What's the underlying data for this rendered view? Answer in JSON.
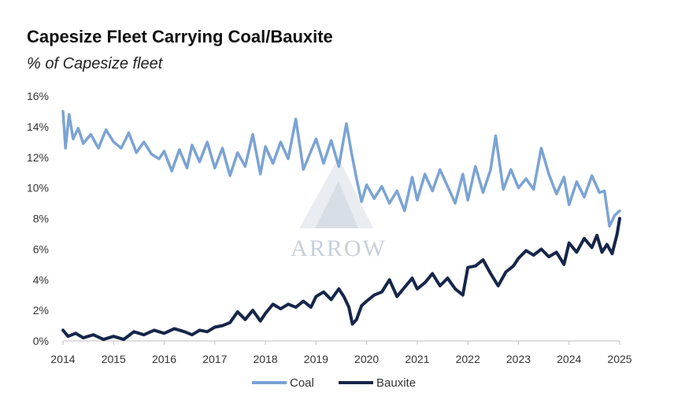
{
  "chart_data": {
    "type": "line",
    "title": "Capesize Fleet Carrying Coal/Bauxite",
    "subtitle": "% of Capesize fleet",
    "xlabel": "",
    "ylabel": "",
    "xlim": [
      2014,
      2025
    ],
    "ylim": [
      0,
      16
    ],
    "y_ticks": [
      0,
      2,
      4,
      6,
      8,
      10,
      12,
      14,
      16
    ],
    "y_tick_labels": [
      "0%",
      "2%",
      "4%",
      "6%",
      "8%",
      "10%",
      "12%",
      "14%",
      "16%"
    ],
    "x_ticks": [
      2014,
      2015,
      2016,
      2017,
      2018,
      2019,
      2020,
      2021,
      2022,
      2023,
      2024,
      2025
    ],
    "x_tick_labels": [
      "2014",
      "2015",
      "2016",
      "2017",
      "2018",
      "2019",
      "2020",
      "2021",
      "2022",
      "2023",
      "2024",
      "2025"
    ],
    "grid": false,
    "legend_position": "bottom-center",
    "watermark": "ARROW",
    "series": [
      {
        "name": "Coal",
        "color": "#7ba3d4",
        "x": [
          2014.0,
          2014.05,
          2014.12,
          2014.2,
          2014.3,
          2014.4,
          2014.55,
          2014.7,
          2014.85,
          2015.0,
          2015.15,
          2015.3,
          2015.45,
          2015.6,
          2015.75,
          2015.9,
          2016.0,
          2016.15,
          2016.3,
          2016.45,
          2016.55,
          2016.7,
          2016.85,
          2017.0,
          2017.15,
          2017.3,
          2017.45,
          2017.6,
          2017.75,
          2017.9,
          2018.0,
          2018.15,
          2018.3,
          2018.45,
          2018.6,
          2018.75,
          2018.9,
          2019.0,
          2019.15,
          2019.3,
          2019.45,
          2019.6,
          2019.7,
          2019.8,
          2019.9,
          2020.0,
          2020.15,
          2020.3,
          2020.45,
          2020.6,
          2020.75,
          2020.9,
          2021.0,
          2021.15,
          2021.3,
          2021.45,
          2021.6,
          2021.75,
          2021.9,
          2022.0,
          2022.15,
          2022.3,
          2022.45,
          2022.55,
          2022.7,
          2022.85,
          2023.0,
          2023.15,
          2023.3,
          2023.45,
          2023.6,
          2023.75,
          2023.9,
          2024.0,
          2024.15,
          2024.3,
          2024.45,
          2024.6,
          2024.7,
          2024.8,
          2024.9,
          2025.0
        ],
        "values": [
          15.0,
          12.6,
          14.8,
          13.2,
          13.9,
          12.9,
          13.5,
          12.6,
          13.8,
          13.0,
          12.6,
          13.6,
          12.3,
          13.0,
          12.2,
          11.9,
          12.4,
          11.1,
          12.5,
          11.3,
          12.8,
          11.7,
          13.0,
          11.3,
          12.6,
          10.8,
          12.3,
          11.4,
          13.5,
          10.9,
          12.7,
          11.6,
          13.0,
          11.9,
          14.5,
          11.2,
          12.4,
          13.2,
          11.6,
          13.1,
          11.4,
          14.2,
          12.3,
          10.6,
          9.1,
          10.2,
          9.3,
          10.1,
          9.0,
          9.8,
          8.5,
          10.7,
          9.2,
          10.9,
          9.8,
          11.2,
          10.1,
          9.0,
          10.9,
          9.2,
          11.4,
          9.7,
          11.2,
          13.4,
          9.9,
          11.2,
          10.0,
          10.6,
          9.9,
          12.6,
          10.9,
          9.6,
          10.7,
          8.9,
          10.4,
          9.4,
          10.8,
          9.7,
          9.8,
          7.5,
          8.2,
          8.5
        ]
      },
      {
        "name": "Bauxite",
        "color": "#16264a",
        "x": [
          2014.0,
          2014.1,
          2014.25,
          2014.4,
          2014.6,
          2014.8,
          2015.0,
          2015.2,
          2015.4,
          2015.6,
          2015.8,
          2016.0,
          2016.2,
          2016.4,
          2016.55,
          2016.7,
          2016.85,
          2017.0,
          2017.15,
          2017.3,
          2017.45,
          2017.6,
          2017.75,
          2017.9,
          2018.0,
          2018.15,
          2018.3,
          2018.45,
          2018.6,
          2018.75,
          2018.9,
          2019.0,
          2019.15,
          2019.3,
          2019.45,
          2019.55,
          2019.65,
          2019.72,
          2019.8,
          2019.9,
          2020.0,
          2020.15,
          2020.3,
          2020.45,
          2020.6,
          2020.75,
          2020.9,
          2021.0,
          2021.15,
          2021.3,
          2021.45,
          2021.6,
          2021.75,
          2021.9,
          2022.0,
          2022.15,
          2022.3,
          2022.45,
          2022.6,
          2022.75,
          2022.9,
          2023.0,
          2023.15,
          2023.3,
          2023.45,
          2023.6,
          2023.75,
          2023.9,
          2024.0,
          2024.15,
          2024.3,
          2024.45,
          2024.55,
          2024.65,
          2024.75,
          2024.85,
          2024.95,
          2025.0
        ],
        "values": [
          0.7,
          0.3,
          0.5,
          0.2,
          0.4,
          0.1,
          0.3,
          0.1,
          0.6,
          0.4,
          0.7,
          0.5,
          0.8,
          0.6,
          0.4,
          0.7,
          0.6,
          0.9,
          1.0,
          1.2,
          1.9,
          1.4,
          2.0,
          1.3,
          1.8,
          2.4,
          2.1,
          2.4,
          2.2,
          2.6,
          2.2,
          2.9,
          3.2,
          2.7,
          3.4,
          2.9,
          2.2,
          1.1,
          1.4,
          2.3,
          2.6,
          3.0,
          3.2,
          4.0,
          2.9,
          3.5,
          4.1,
          3.4,
          3.8,
          4.4,
          3.6,
          4.1,
          3.4,
          3.0,
          4.8,
          4.9,
          5.3,
          4.4,
          3.6,
          4.5,
          4.9,
          5.4,
          5.9,
          5.6,
          6.0,
          5.5,
          5.8,
          5.0,
          6.4,
          5.8,
          6.7,
          6.1,
          6.9,
          5.8,
          6.3,
          5.7,
          7.0,
          8.0
        ]
      }
    ]
  }
}
